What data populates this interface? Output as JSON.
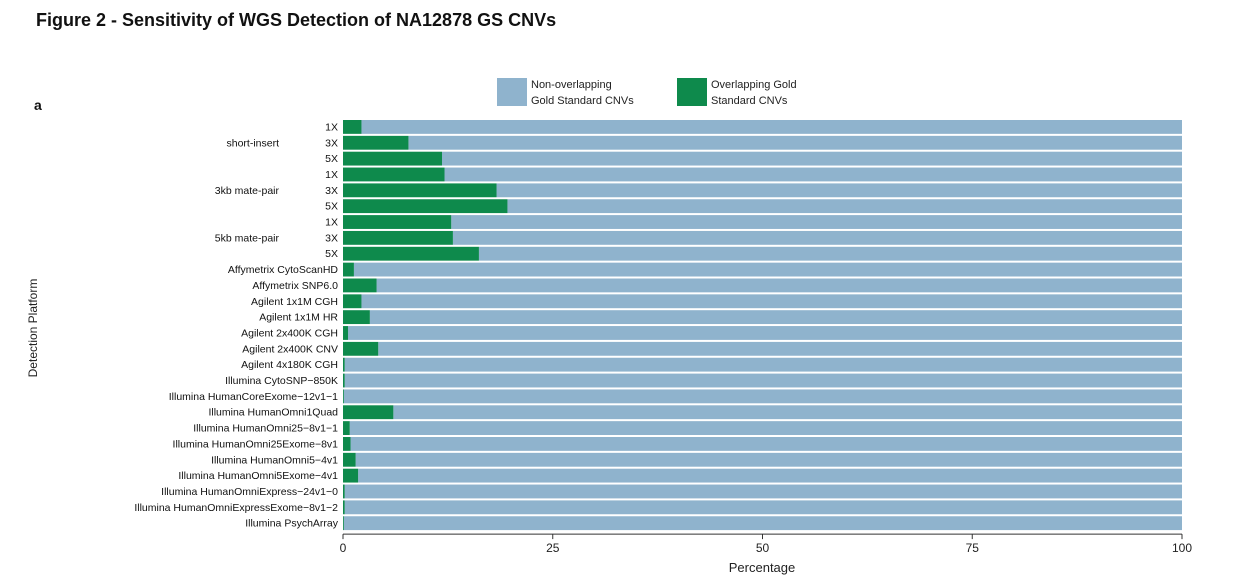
{
  "figure_title": "Figure 2 - Sensitivity of WGS Detection of NA12878 GS CNVs",
  "panel_label": "a",
  "colors": {
    "non_overlapping": "#8fb3cd",
    "overlapping": "#0e8a4c"
  },
  "legend": {
    "non_overlapping": [
      "Non-overlapping",
      "Gold Standard CNVs"
    ],
    "overlapping": [
      "Overlapping Gold",
      "Standard CNVs"
    ]
  },
  "chart_data": {
    "type": "bar",
    "orientation": "horizontal",
    "stacked": true,
    "title": "",
    "xlabel": "Percentage",
    "ylabel": "Detection Platform",
    "xlim": [
      0,
      100
    ],
    "x_ticks": [
      "0",
      "25",
      "50",
      "75",
      "100"
    ],
    "groups": [
      {
        "label": "short-insert",
        "categories": [
          "1X",
          "3X",
          "5X"
        ]
      },
      {
        "label": "3kb mate-pair",
        "categories": [
          "1X",
          "3X",
          "5X"
        ]
      },
      {
        "label": "5kb mate-pair",
        "categories": [
          "1X",
          "3X",
          "5X"
        ]
      }
    ],
    "categories": [
      "1X",
      "3X",
      "5X",
      "1X",
      "3X",
      "5X",
      "1X",
      "3X",
      "5X",
      "Affymetrix CytoScanHD",
      "Affymetrix SNP6.0",
      "Agilent 1x1M CGH",
      "Agilent 1x1M HR",
      "Agilent 2x400K CGH",
      "Agilent 2x400K CNV",
      "Agilent 4x180K CGH",
      "Illumina CytoSNP−850K",
      "Illumina HumanCoreExome−12v1−1",
      "Illumina HumanOmni1Quad",
      "Illumina HumanOmni25−8v1−1",
      "Illumina HumanOmni25Exome−8v1",
      "Illumina HumanOmni5−4v1",
      "Illumina HumanOmni5Exome−4v1",
      "Illumina HumanOmniExpress−24v1−0",
      "Illumina HumanOmniExpressExome−8v1−2",
      "Illumina PsychArray"
    ],
    "series": [
      {
        "name": "Overlapping Gold Standard CNVs",
        "values": [
          2.2,
          7.8,
          11.8,
          12.1,
          18.3,
          19.6,
          12.9,
          13.1,
          16.2,
          1.3,
          4.0,
          2.2,
          3.2,
          0.6,
          4.2,
          0.2,
          0.2,
          0.1,
          6.0,
          0.8,
          0.9,
          1.5,
          1.8,
          0.2,
          0.2,
          0.1
        ]
      },
      {
        "name": "Non-overlapping Gold Standard CNVs",
        "values": [
          97.8,
          92.2,
          88.2,
          87.9,
          81.7,
          80.4,
          87.1,
          86.9,
          83.8,
          98.7,
          96.0,
          97.8,
          96.8,
          99.4,
          95.8,
          99.8,
          99.8,
          99.9,
          94.0,
          99.2,
          99.1,
          98.5,
          98.2,
          99.8,
          99.8,
          99.9
        ]
      }
    ]
  }
}
